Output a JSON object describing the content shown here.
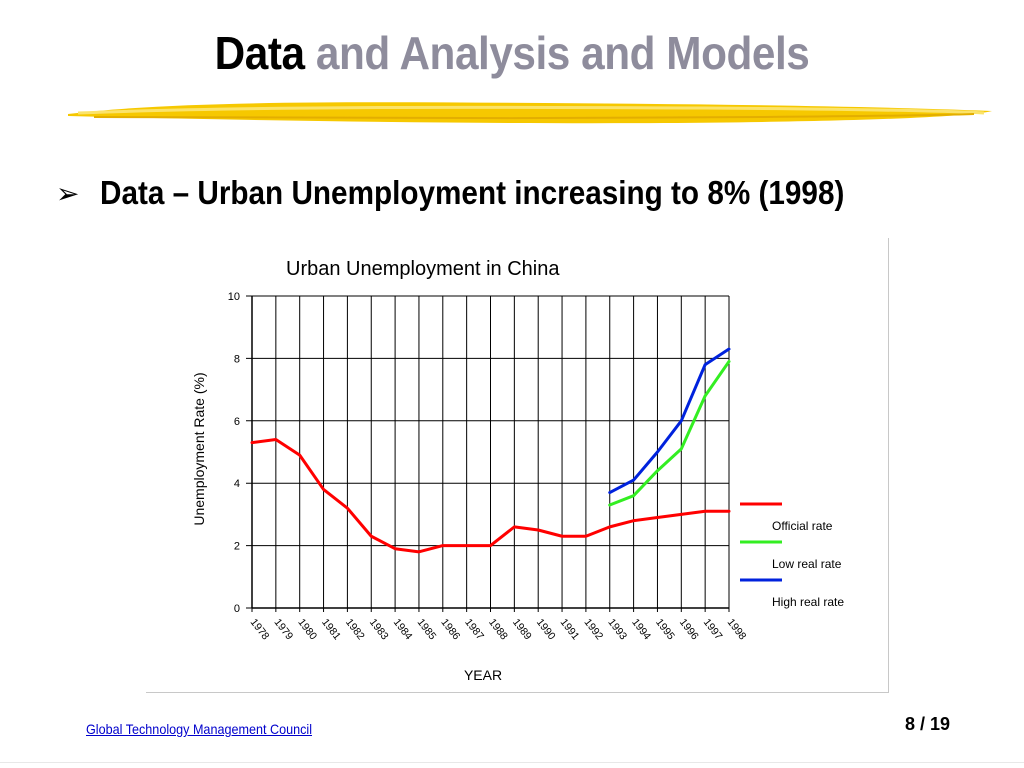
{
  "slide": {
    "title_strong": "Data",
    "title_light": " and Analysis and Models",
    "bullet_text": "Data – Urban Unemployment increasing to 8% (1998)",
    "footer_link": "Global Technology Management Council",
    "page_number": "8 / 19",
    "bullet_icon": "arrow-bullet-icon",
    "title_light_color": "#8e8c9c",
    "underline_color": "#f5c400"
  },
  "chart_data": {
    "type": "line",
    "title": "Urban Unemployment in China",
    "xlabel": "YEAR",
    "ylabel": "Unemployment Rate (%)",
    "ylim": [
      0,
      10
    ],
    "yticks": [
      0,
      2,
      4,
      6,
      8,
      10
    ],
    "x": [
      1978,
      1979,
      1980,
      1981,
      1982,
      1983,
      1984,
      1985,
      1986,
      1987,
      1988,
      1989,
      1990,
      1991,
      1992,
      1993,
      1994,
      1995,
      1996,
      1997,
      1998
    ],
    "grid": true,
    "legend_position": "right",
    "series": [
      {
        "name": "Official rate",
        "color": "#ff0000",
        "x": [
          1978,
          1979,
          1980,
          1981,
          1982,
          1983,
          1984,
          1985,
          1986,
          1987,
          1988,
          1989,
          1990,
          1991,
          1992,
          1993,
          1994,
          1995,
          1996,
          1997,
          1998
        ],
        "values": [
          5.3,
          5.4,
          4.9,
          3.8,
          3.2,
          2.3,
          1.9,
          1.8,
          2.0,
          2.0,
          2.0,
          2.6,
          2.5,
          2.3,
          2.3,
          2.6,
          2.8,
          2.9,
          3.0,
          3.1,
          3.1
        ]
      },
      {
        "name": "Low real rate",
        "color": "#33ee22",
        "x": [
          1993,
          1994,
          1995,
          1996,
          1997,
          1998
        ],
        "values": [
          3.3,
          3.6,
          4.4,
          5.1,
          6.8,
          7.9
        ]
      },
      {
        "name": "High real rate",
        "color": "#0022dd",
        "x": [
          1993,
          1994,
          1995,
          1996,
          1997,
          1998
        ],
        "values": [
          3.7,
          4.1,
          5.0,
          6.0,
          7.8,
          8.3
        ]
      }
    ]
  }
}
